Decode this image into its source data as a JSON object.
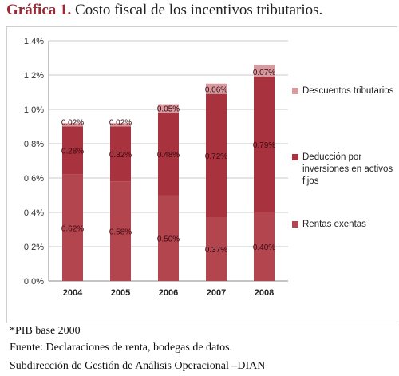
{
  "title": {
    "label": "Gráfica 1.",
    "text": "Costo fiscal de los incentivos tributarios."
  },
  "chart_data": {
    "type": "bar",
    "stacked": true,
    "categories": [
      "2004",
      "2005",
      "2006",
      "2007",
      "2008"
    ],
    "series": [
      {
        "name": "Rentas exentas",
        "values": [
          0.62,
          0.58,
          0.5,
          0.37,
          0.4
        ],
        "labels": [
          "0.62%",
          "0.58%",
          "0.50%",
          "0.37%",
          "0.40%"
        ],
        "color": "#b3454f"
      },
      {
        "name": "Deducción por inversiones en activos fijos",
        "values": [
          0.28,
          0.32,
          0.48,
          0.72,
          0.79
        ],
        "labels": [
          "0.28%",
          "0.32%",
          "0.48%",
          "0.72%",
          "0.79%"
        ],
        "color": "#a8323d"
      },
      {
        "name": "Descuentos tributarios",
        "values": [
          0.02,
          0.02,
          0.05,
          0.06,
          0.07
        ],
        "labels": [
          "0.02%",
          "0.02%",
          "0.05%",
          "0.06%",
          "0.07%"
        ],
        "color": "#d69a9f"
      }
    ],
    "y_ticks": [
      "0.0%",
      "0.2%",
      "0.4%",
      "0.6%",
      "0.8%",
      "1.0%",
      "1.2%",
      "1.4%"
    ],
    "ylim": [
      0,
      1.4
    ],
    "grid": true,
    "legend": "right"
  },
  "legend": [
    {
      "label": "Descuentos tributarios",
      "color": "#d69a9f"
    },
    {
      "label": "Deducción por inversiones en activos fijos",
      "color": "#a8323d"
    },
    {
      "label": "Rentas exentas",
      "color": "#b3454f"
    }
  ],
  "footnotes": {
    "base": "*PIB base 2000",
    "source": "Fuente: Declaraciones de renta, bodegas de datos.",
    "office": "Subdirección de Gestión de Análisis Operacional –DIAN"
  }
}
